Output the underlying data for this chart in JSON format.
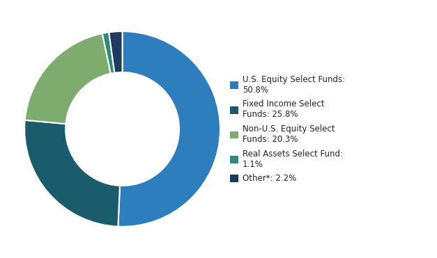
{
  "labels": [
    "U.S. Equity Select Funds:\n50.8%",
    "Fixed Income Select\nFunds: 25.8%",
    "Non-U.S. Equity Select\nFunds: 20.3%",
    "Real Assets Select Fund:\n1.1%",
    "Other*: 2.2%"
  ],
  "values": [
    50.8,
    25.8,
    20.3,
    1.1,
    2.2
  ],
  "colors": [
    "#2E7EBE",
    "#1A5C6B",
    "#7EAB6E",
    "#2D8B7A",
    "#1E3A5F"
  ],
  "background_color": "#ffffff",
  "wedge_edge_color": "#ffffff",
  "donut_width": 0.42,
  "start_angle": 90
}
